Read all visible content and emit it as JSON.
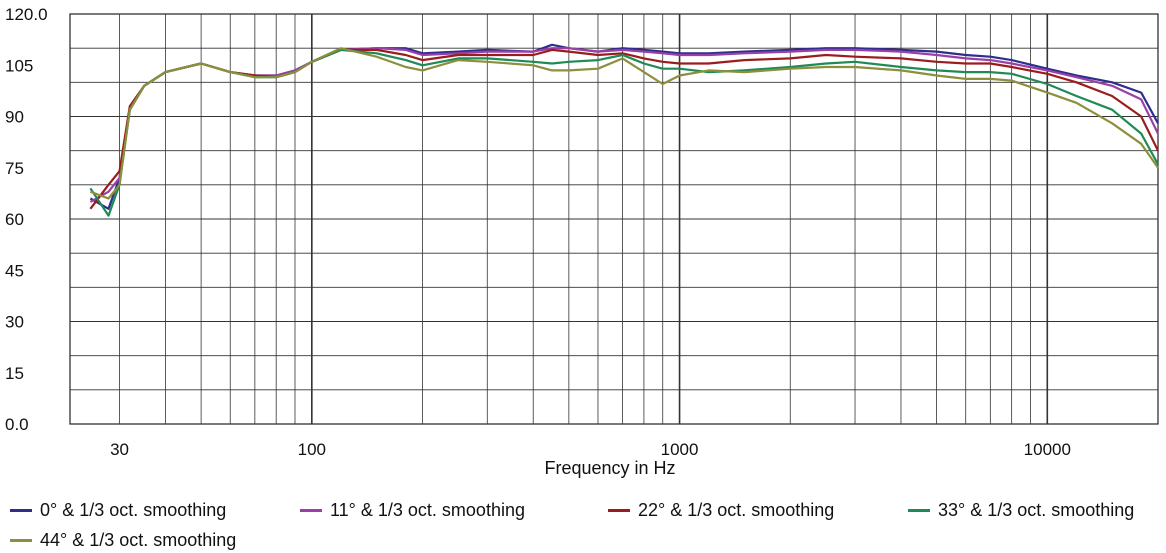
{
  "chart_data": {
    "type": "line",
    "title": "",
    "xlabel": "Frequency in Hz",
    "ylabel": "",
    "x_scale": "log",
    "xlim": [
      22,
      20000
    ],
    "ylim": [
      0,
      120
    ],
    "grid": true,
    "legend_position": "bottom",
    "x_tick_labels": [
      "30",
      "100",
      "1000",
      "10000"
    ],
    "y_tick_labels": [
      "0.0",
      "15",
      "30",
      "45",
      "60",
      "75",
      "90",
      "105",
      "120.0"
    ],
    "x": [
      25,
      28,
      30,
      32,
      35,
      40,
      50,
      60,
      70,
      80,
      90,
      100,
      120,
      150,
      180,
      200,
      250,
      300,
      400,
      450,
      500,
      600,
      700,
      800,
      900,
      1000,
      1200,
      1500,
      2000,
      2500,
      3000,
      4000,
      5000,
      6000,
      7000,
      8000,
      10000,
      12000,
      15000,
      18000,
      20000
    ],
    "series": [
      {
        "name": "0° & 1/3 oct. smoothing",
        "color": "#2e2e8f",
        "values": [
          66,
          63,
          72,
          92,
          99,
          103,
          105.5,
          103,
          102,
          102,
          103.5,
          106,
          109.5,
          110,
          110,
          108.5,
          109,
          109.5,
          109,
          111,
          110,
          109,
          110,
          109.5,
          109,
          108.5,
          108.5,
          109,
          109.5,
          110,
          110,
          109.5,
          109,
          108,
          107.5,
          106.5,
          104,
          102,
          100,
          97,
          88
        ]
      },
      {
        "name": "11° & 1/3 oct. smoothing",
        "color": "#9a3fa5",
        "values": [
          65,
          68,
          72,
          92,
          99,
          103,
          105.5,
          103,
          102,
          102,
          103.5,
          106,
          109.5,
          110,
          109.5,
          108,
          108.5,
          109,
          109,
          110,
          110,
          109,
          109.5,
          109,
          108.5,
          108,
          108,
          108.5,
          109,
          109.5,
          109.5,
          109,
          108,
          107,
          106.5,
          105.5,
          103.5,
          101.5,
          99,
          95,
          85
        ]
      },
      {
        "name": "22° & 1/3 oct. smoothing",
        "color": "#9b1c1c",
        "values": [
          63,
          70,
          74,
          93,
          99,
          103,
          105.5,
          103,
          102,
          101.5,
          103,
          106,
          109.5,
          109.5,
          108,
          106.5,
          108,
          108,
          108,
          109.5,
          109,
          108,
          108.5,
          107,
          106,
          105.5,
          105.5,
          106.5,
          107,
          108,
          107.5,
          107,
          106,
          105.5,
          105.5,
          104.5,
          102.5,
          100,
          96,
          90,
          80
        ]
      },
      {
        "name": "33° & 1/3 oct. smoothing",
        "color": "#1f8a55",
        "values": [
          69,
          61,
          70,
          92,
          99,
          103,
          105.5,
          103,
          101.5,
          101.5,
          103,
          106,
          109.5,
          108.5,
          106.5,
          105,
          107,
          107,
          106,
          105.5,
          106,
          106.5,
          108,
          105.5,
          104,
          104,
          103,
          103.5,
          104.5,
          105.5,
          106,
          104.5,
          103.5,
          103,
          103,
          102.5,
          99.5,
          96,
          92,
          85,
          76
        ]
      },
      {
        "name": "44° & 1/3 oct. smoothing",
        "color": "#8c8f3c",
        "values": [
          68,
          66,
          70,
          92,
          99,
          103,
          105.5,
          103,
          101.5,
          101.5,
          103,
          106,
          110,
          107.5,
          104.5,
          103.5,
          106.5,
          106,
          105,
          103.5,
          103.5,
          104,
          107,
          103,
          99.5,
          102,
          103.5,
          103,
          104,
          104.5,
          104.5,
          103.5,
          102,
          101,
          101,
          100.5,
          97,
          94,
          88,
          82,
          75
        ]
      }
    ]
  }
}
